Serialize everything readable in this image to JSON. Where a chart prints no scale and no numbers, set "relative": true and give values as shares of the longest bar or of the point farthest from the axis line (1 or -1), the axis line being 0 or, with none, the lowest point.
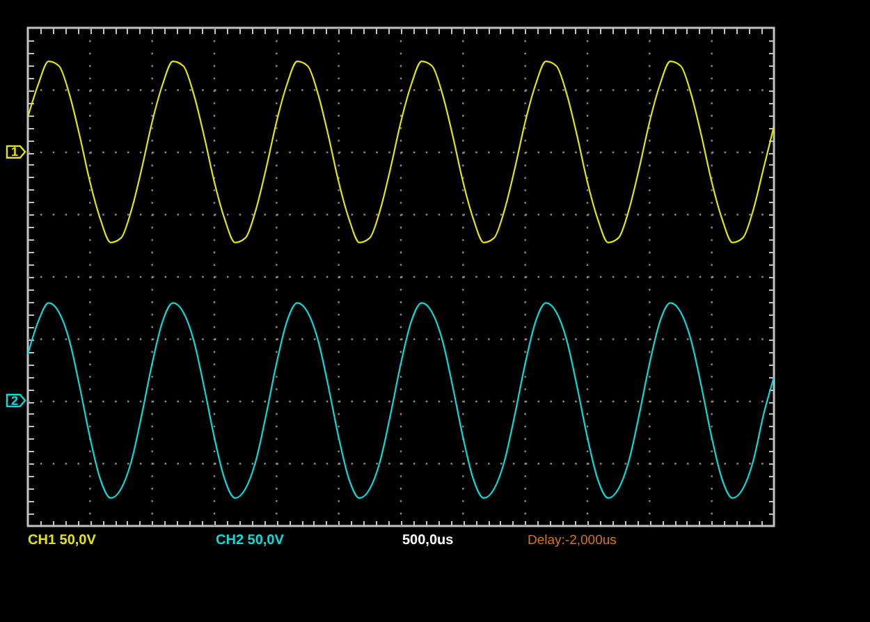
{
  "chart_data": {
    "type": "line",
    "relative": true,
    "grid": true,
    "categories": [
      null,
      null,
      null,
      null,
      null,
      null,
      null,
      null,
      null,
      null,
      null,
      null,
      null,
      null,
      null,
      null,
      null,
      null,
      null,
      null,
      null,
      null,
      null,
      null,
      null,
      null,
      null,
      null,
      null,
      null,
      null,
      null,
      null,
      null,
      null,
      null,
      null,
      null,
      null,
      null,
      null,
      null,
      null,
      null,
      null,
      null,
      null,
      null,
      null,
      null,
      null,
      null,
      null,
      null,
      null,
      null,
      null,
      null,
      null,
      null,
      null,
      null,
      null,
      null,
      null,
      null,
      null,
      null,
      null,
      null,
      null,
      null,
      null
    ],
    "series": [
      {
        "name": "1",
        "color": "#e6e600",
        "values": [
          0.88,
          0.95,
          1.0,
          0.99,
          0.93,
          0.84,
          0.74,
          0.66,
          0.61,
          0.62,
          0.68,
          0.77,
          0.87,
          0.95,
          1.0,
          0.99,
          0.93,
          0.84,
          0.74,
          0.66,
          0.61,
          0.62,
          0.68,
          0.77,
          0.87,
          0.95,
          1.0,
          0.99,
          0.93,
          0.84,
          0.74,
          0.66,
          0.61,
          0.62,
          0.68,
          0.77,
          0.87,
          0.95,
          1.0,
          0.99,
          0.93,
          0.84,
          0.74,
          0.66,
          0.61,
          0.62,
          0.68,
          0.77,
          0.87,
          0.95,
          1.0,
          0.99,
          0.93,
          0.84,
          0.74,
          0.66,
          0.61,
          0.62,
          0.68,
          0.77,
          0.87,
          0.95,
          1.0,
          0.99,
          0.93,
          0.84,
          0.74,
          0.66,
          0.61,
          0.62,
          0.68,
          0.77,
          0.86
        ]
      },
      {
        "name": "2",
        "color": "#00dede",
        "values": [
          0.37,
          0.44,
          0.48,
          0.46,
          0.4,
          0.3,
          0.19,
          0.1,
          0.06,
          0.08,
          0.14,
          0.24,
          0.35,
          0.44,
          0.48,
          0.46,
          0.4,
          0.3,
          0.19,
          0.1,
          0.06,
          0.08,
          0.14,
          0.24,
          0.35,
          0.44,
          0.48,
          0.46,
          0.4,
          0.3,
          0.19,
          0.1,
          0.06,
          0.08,
          0.14,
          0.24,
          0.35,
          0.44,
          0.48,
          0.46,
          0.4,
          0.3,
          0.19,
          0.1,
          0.06,
          0.08,
          0.14,
          0.24,
          0.35,
          0.44,
          0.48,
          0.46,
          0.4,
          0.3,
          0.19,
          0.1,
          0.06,
          0.08,
          0.14,
          0.24,
          0.35,
          0.44,
          0.48,
          0.46,
          0.4,
          0.3,
          0.19,
          0.1,
          0.06,
          0.08,
          0.14,
          0.24,
          0.32
        ]
      }
    ],
    "annotations": [
      "CH1 50,0V",
      "CH2 50,0V",
      "500,0us",
      "Delay:-2,000us"
    ]
  }
}
